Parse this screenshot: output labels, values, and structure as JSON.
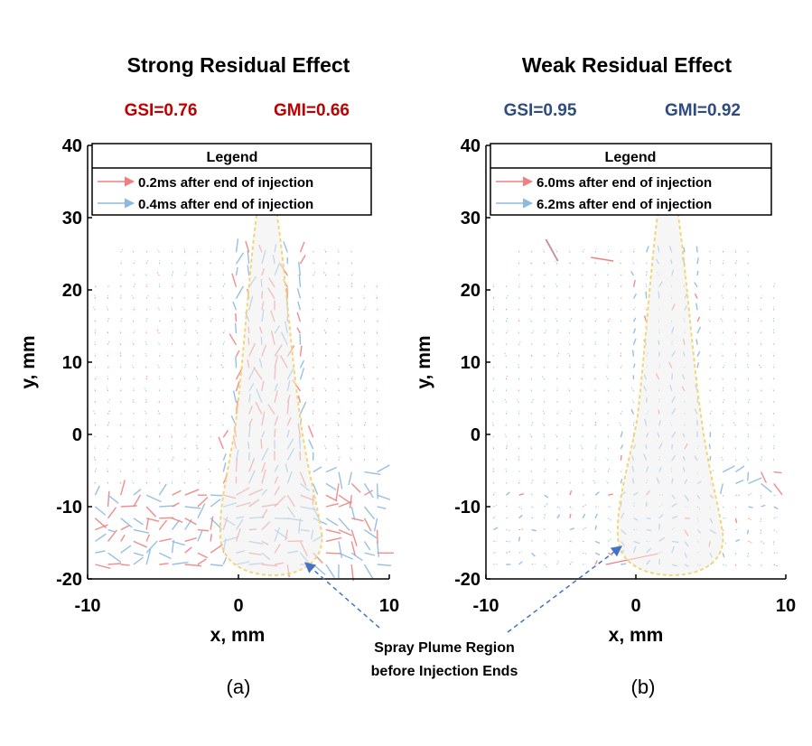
{
  "figure": {
    "annotation": {
      "line1": "Spray Plume Region",
      "line2": "before Injection Ends"
    }
  },
  "chart_data": [
    {
      "type": "scatter",
      "title": "Strong Residual Effect",
      "metrics": [
        {
          "label": "GSI=0.76"
        },
        {
          "label": "GMI=0.66"
        }
      ],
      "metric_color": "#C00000",
      "panel_label": "(a)",
      "xlabel": "x, mm",
      "ylabel": "y, mm",
      "xlim": [
        -10,
        10
      ],
      "ylim": [
        -20,
        40
      ],
      "xticks": [
        -10,
        0,
        10
      ],
      "yticks": [
        -20,
        -10,
        0,
        10,
        20,
        30,
        40
      ],
      "grid": false,
      "legend": {
        "title": "Legend",
        "placement": "top",
        "entries": [
          {
            "label": "0.2ms after end of injection",
            "color": "#F08080"
          },
          {
            "label": "0.4ms after end of injection",
            "color": "#8DB8E0"
          }
        ]
      },
      "series": [
        {
          "name": "0.2ms after end of injection",
          "color": "#F08080"
        },
        {
          "name": "0.4ms after end of injection",
          "color": "#8DB8E0"
        }
      ],
      "plume_outline_color": "#F2D675",
      "residual": "strong"
    },
    {
      "type": "scatter",
      "title": "Weak Residual Effect",
      "metrics": [
        {
          "label": "GSI=0.95"
        },
        {
          "label": "GMI=0.92"
        }
      ],
      "metric_color": "#2E4C7E",
      "panel_label": "(b)",
      "xlabel": "x, mm",
      "ylabel": "y, mm",
      "xlim": [
        -10,
        10
      ],
      "ylim": [
        -20,
        40
      ],
      "xticks": [
        -10,
        0,
        10
      ],
      "yticks": [
        -20,
        -10,
        0,
        10,
        20,
        30,
        40
      ],
      "grid": false,
      "legend": {
        "title": "Legend",
        "placement": "top",
        "entries": [
          {
            "label": "6.0ms after end of injection",
            "color": "#F08080"
          },
          {
            "label": "6.2ms after end of injection",
            "color": "#8DB8E0"
          }
        ]
      },
      "series": [
        {
          "name": "6.0ms after end of injection",
          "color": "#F08080"
        },
        {
          "name": "6.2ms after end of injection",
          "color": "#8DB8E0"
        }
      ],
      "plume_outline_color": "#F2D675",
      "residual": "weak"
    }
  ]
}
